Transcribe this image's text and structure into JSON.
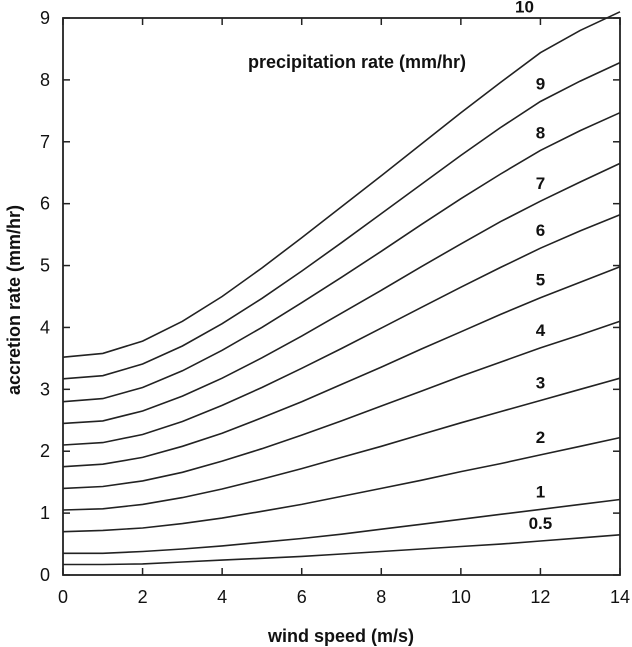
{
  "chart_data": {
    "type": "line",
    "title": "",
    "annotation": "precipitation rate (mm/hr)",
    "xlabel": "wind speed (m/s)",
    "ylabel": "accretion rate (mm/hr)",
    "xlim": [
      0,
      14
    ],
    "ylim": [
      0,
      9
    ],
    "xticks": [
      0,
      2,
      4,
      6,
      8,
      10,
      12,
      14
    ],
    "yticks": [
      0,
      1,
      2,
      3,
      4,
      5,
      6,
      7,
      8,
      9
    ],
    "x": [
      0,
      1,
      2,
      3,
      4,
      5,
      6,
      7,
      8,
      9,
      10,
      11,
      12,
      13,
      14
    ],
    "series": [
      {
        "name": "0.5",
        "values": [
          0.17,
          0.17,
          0.18,
          0.21,
          0.24,
          0.27,
          0.3,
          0.34,
          0.38,
          0.42,
          0.46,
          0.5,
          0.55,
          0.6,
          0.65
        ]
      },
      {
        "name": "1",
        "values": [
          0.35,
          0.35,
          0.38,
          0.42,
          0.47,
          0.53,
          0.59,
          0.66,
          0.74,
          0.82,
          0.9,
          0.98,
          1.06,
          1.14,
          1.22
        ]
      },
      {
        "name": "2",
        "values": [
          0.7,
          0.72,
          0.76,
          0.83,
          0.92,
          1.03,
          1.14,
          1.27,
          1.4,
          1.53,
          1.67,
          1.8,
          1.94,
          2.08,
          2.22
        ]
      },
      {
        "name": "3",
        "values": [
          1.05,
          1.07,
          1.14,
          1.25,
          1.39,
          1.55,
          1.72,
          1.9,
          2.08,
          2.27,
          2.46,
          2.64,
          2.82,
          3.0,
          3.18
        ]
      },
      {
        "name": "4",
        "values": [
          1.4,
          1.43,
          1.52,
          1.66,
          1.84,
          2.04,
          2.26,
          2.49,
          2.73,
          2.97,
          3.21,
          3.44,
          3.67,
          3.88,
          4.1
        ]
      },
      {
        "name": "5",
        "values": [
          1.75,
          1.79,
          1.9,
          2.08,
          2.29,
          2.54,
          2.8,
          3.08,
          3.36,
          3.65,
          3.93,
          4.21,
          4.48,
          4.73,
          4.98
        ]
      },
      {
        "name": "6",
        "values": [
          2.1,
          2.14,
          2.27,
          2.48,
          2.74,
          3.03,
          3.34,
          3.66,
          3.99,
          4.32,
          4.65,
          4.97,
          5.28,
          5.56,
          5.82
        ]
      },
      {
        "name": "7",
        "values": [
          2.45,
          2.49,
          2.65,
          2.89,
          3.18,
          3.51,
          3.86,
          4.23,
          4.6,
          4.98,
          5.35,
          5.71,
          6.04,
          6.35,
          6.65
        ]
      },
      {
        "name": "8",
        "values": [
          2.8,
          2.85,
          3.03,
          3.3,
          3.63,
          4.0,
          4.4,
          4.81,
          5.23,
          5.66,
          6.08,
          6.48,
          6.86,
          7.18,
          7.47
        ]
      },
      {
        "name": "9",
        "values": [
          3.17,
          3.22,
          3.41,
          3.7,
          4.06,
          4.47,
          4.91,
          5.37,
          5.84,
          6.31,
          6.78,
          7.23,
          7.65,
          7.98,
          8.28
        ]
      },
      {
        "name": "10",
        "values": [
          3.52,
          3.58,
          3.78,
          4.1,
          4.5,
          4.96,
          5.45,
          5.95,
          6.45,
          6.96,
          7.47,
          7.96,
          8.44,
          8.8,
          9.1
        ]
      }
    ]
  }
}
